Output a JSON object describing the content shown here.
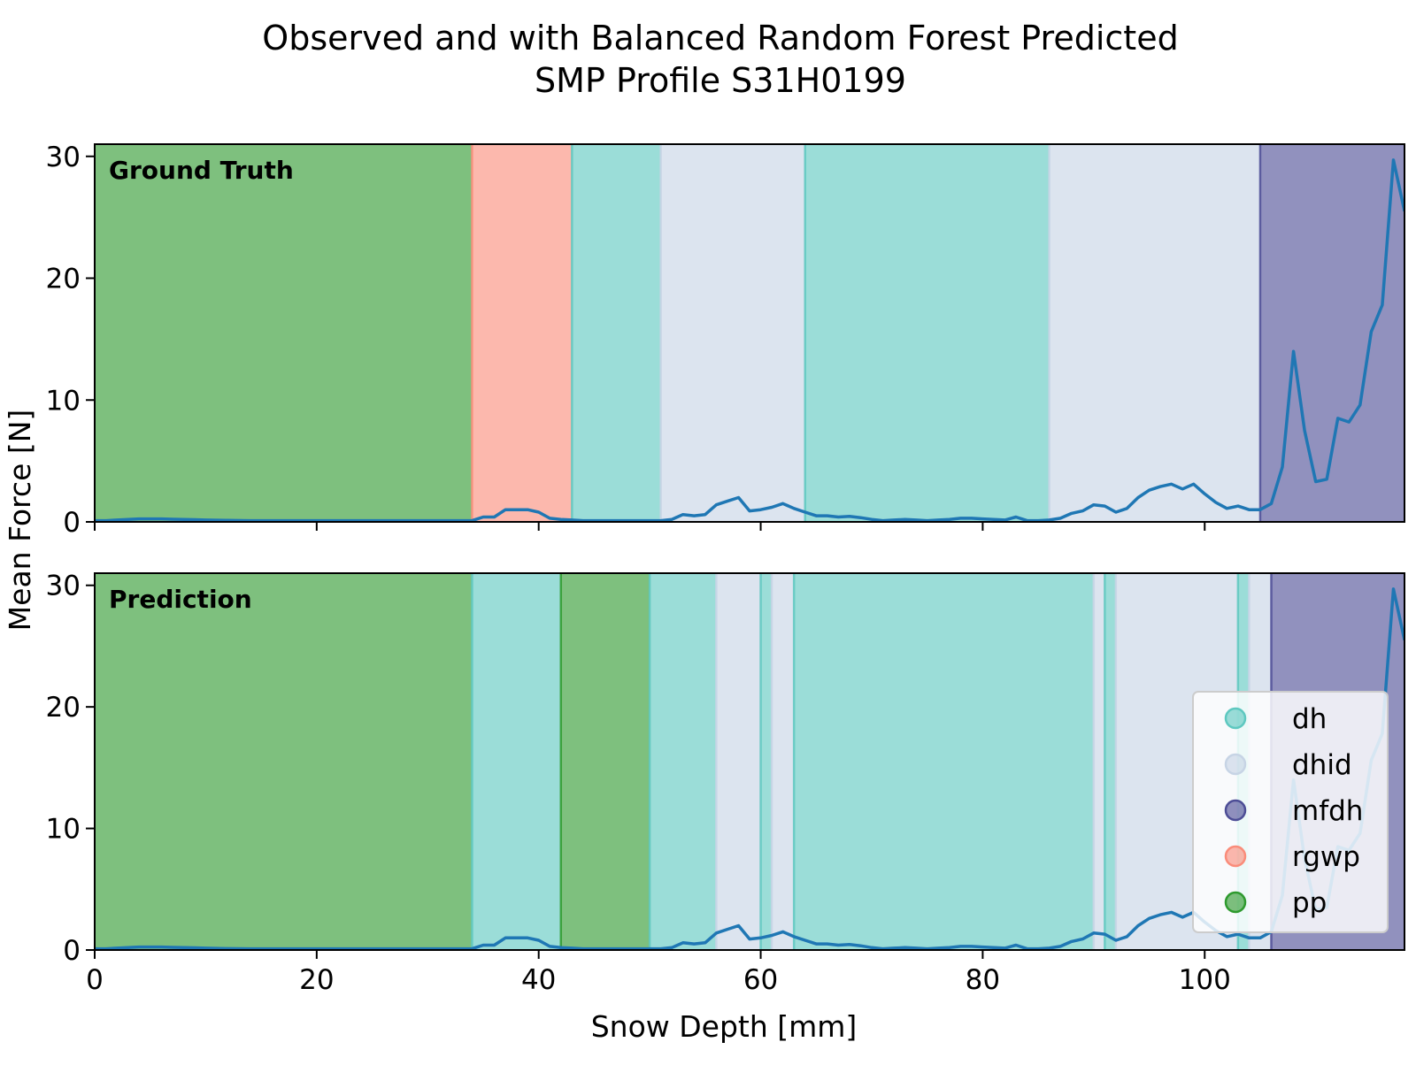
{
  "chart_data": {
    "type": "line",
    "title_line1": "Observed and with Balanced Random Forest Predicted",
    "title_line2": "SMP Profile S31H0199",
    "xlabel": "Snow Depth [mm]",
    "ylabel": "Mean Force [N]",
    "xlim": [
      0,
      118
    ],
    "ylim": [
      0,
      31
    ],
    "xticks": [
      0,
      20,
      40,
      60,
      80,
      100
    ],
    "yticks": [
      0,
      10,
      20,
      30
    ],
    "line_color": "#1f77b4",
    "class_colors": {
      "dh": "#5ec8c0",
      "dhid": "#c7d4e5",
      "mfdh": "#4d4d96",
      "rgwp": "#fa8c7a",
      "pp": "#2e9a2e"
    },
    "legend": {
      "placement": "lower right of bottom panel",
      "entries": [
        "dh",
        "dhid",
        "mfdh",
        "rgwp",
        "pp"
      ]
    },
    "panels": [
      {
        "label": "Ground Truth",
        "segments": [
          {
            "start": 0,
            "end": 34,
            "class": "pp"
          },
          {
            "start": 34,
            "end": 43,
            "class": "rgwp"
          },
          {
            "start": 43,
            "end": 51,
            "class": "dh"
          },
          {
            "start": 51,
            "end": 64,
            "class": "dhid"
          },
          {
            "start": 64,
            "end": 86,
            "class": "dh"
          },
          {
            "start": 86,
            "end": 105,
            "class": "dhid"
          },
          {
            "start": 105,
            "end": 118,
            "class": "mfdh"
          }
        ]
      },
      {
        "label": "Prediction",
        "segments": [
          {
            "start": 0,
            "end": 34,
            "class": "pp"
          },
          {
            "start": 34,
            "end": 42,
            "class": "dh"
          },
          {
            "start": 42,
            "end": 50,
            "class": "pp"
          },
          {
            "start": 50,
            "end": 56,
            "class": "dh"
          },
          {
            "start": 56,
            "end": 60,
            "class": "dhid"
          },
          {
            "start": 60,
            "end": 61,
            "class": "dh"
          },
          {
            "start": 61,
            "end": 63,
            "class": "dhid"
          },
          {
            "start": 63,
            "end": 90,
            "class": "dh"
          },
          {
            "start": 90,
            "end": 91,
            "class": "dhid"
          },
          {
            "start": 91,
            "end": 92,
            "class": "dh"
          },
          {
            "start": 92,
            "end": 103,
            "class": "dhid"
          },
          {
            "start": 103,
            "end": 104,
            "class": "dh"
          },
          {
            "start": 104,
            "end": 106,
            "class": "dhid"
          },
          {
            "start": 106,
            "end": 118,
            "class": "mfdh"
          }
        ]
      }
    ],
    "series": [
      {
        "x": [
          0,
          1,
          2,
          3,
          4,
          5,
          6,
          7,
          8,
          9,
          10,
          12,
          14,
          16,
          18,
          20,
          22,
          24,
          26,
          28,
          30,
          32,
          34,
          35,
          36,
          37,
          38,
          39,
          40,
          41,
          42,
          43,
          44,
          45,
          46,
          47,
          48,
          49,
          50,
          51,
          52,
          53,
          54,
          55,
          56,
          57,
          58,
          59,
          60,
          61,
          62,
          63,
          64,
          65,
          66,
          67,
          68,
          69,
          70,
          71,
          72,
          73,
          74,
          75,
          76,
          77,
          78,
          79,
          80,
          81,
          82,
          83,
          84,
          85,
          86,
          87,
          88,
          89,
          90,
          91,
          92,
          93,
          94,
          95,
          96,
          97,
          98,
          99,
          100,
          101,
          102,
          103,
          104,
          105,
          106,
          107,
          108,
          109,
          110,
          111,
          112,
          113,
          114,
          115,
          116,
          117,
          118
        ],
        "y": [
          0.1,
          0.1,
          0.15,
          0.2,
          0.25,
          0.25,
          0.25,
          0.22,
          0.2,
          0.18,
          0.15,
          0.12,
          0.1,
          0.1,
          0.1,
          0.1,
          0.1,
          0.1,
          0.1,
          0.1,
          0.1,
          0.1,
          0.1,
          0.4,
          0.4,
          1.0,
          1.0,
          1.0,
          0.8,
          0.3,
          0.2,
          0.15,
          0.1,
          0.1,
          0.1,
          0.1,
          0.1,
          0.1,
          0.1,
          0.1,
          0.2,
          0.6,
          0.5,
          0.6,
          1.4,
          1.7,
          2.0,
          0.9,
          1.0,
          1.2,
          1.5,
          1.1,
          0.8,
          0.5,
          0.5,
          0.4,
          0.45,
          0.35,
          0.2,
          0.1,
          0.15,
          0.2,
          0.15,
          0.1,
          0.15,
          0.2,
          0.3,
          0.3,
          0.25,
          0.2,
          0.15,
          0.4,
          0.1,
          0.1,
          0.15,
          0.3,
          0.7,
          0.9,
          1.4,
          1.3,
          0.8,
          1.1,
          2.0,
          2.6,
          2.9,
          3.1,
          2.7,
          3.1,
          2.3,
          1.6,
          1.1,
          1.3,
          1.0,
          1.0,
          1.5,
          4.5,
          14.0,
          7.5,
          3.3,
          3.5,
          8.5,
          8.2,
          9.6,
          15.6,
          17.8,
          29.7,
          25.5
        ]
      }
    ]
  }
}
